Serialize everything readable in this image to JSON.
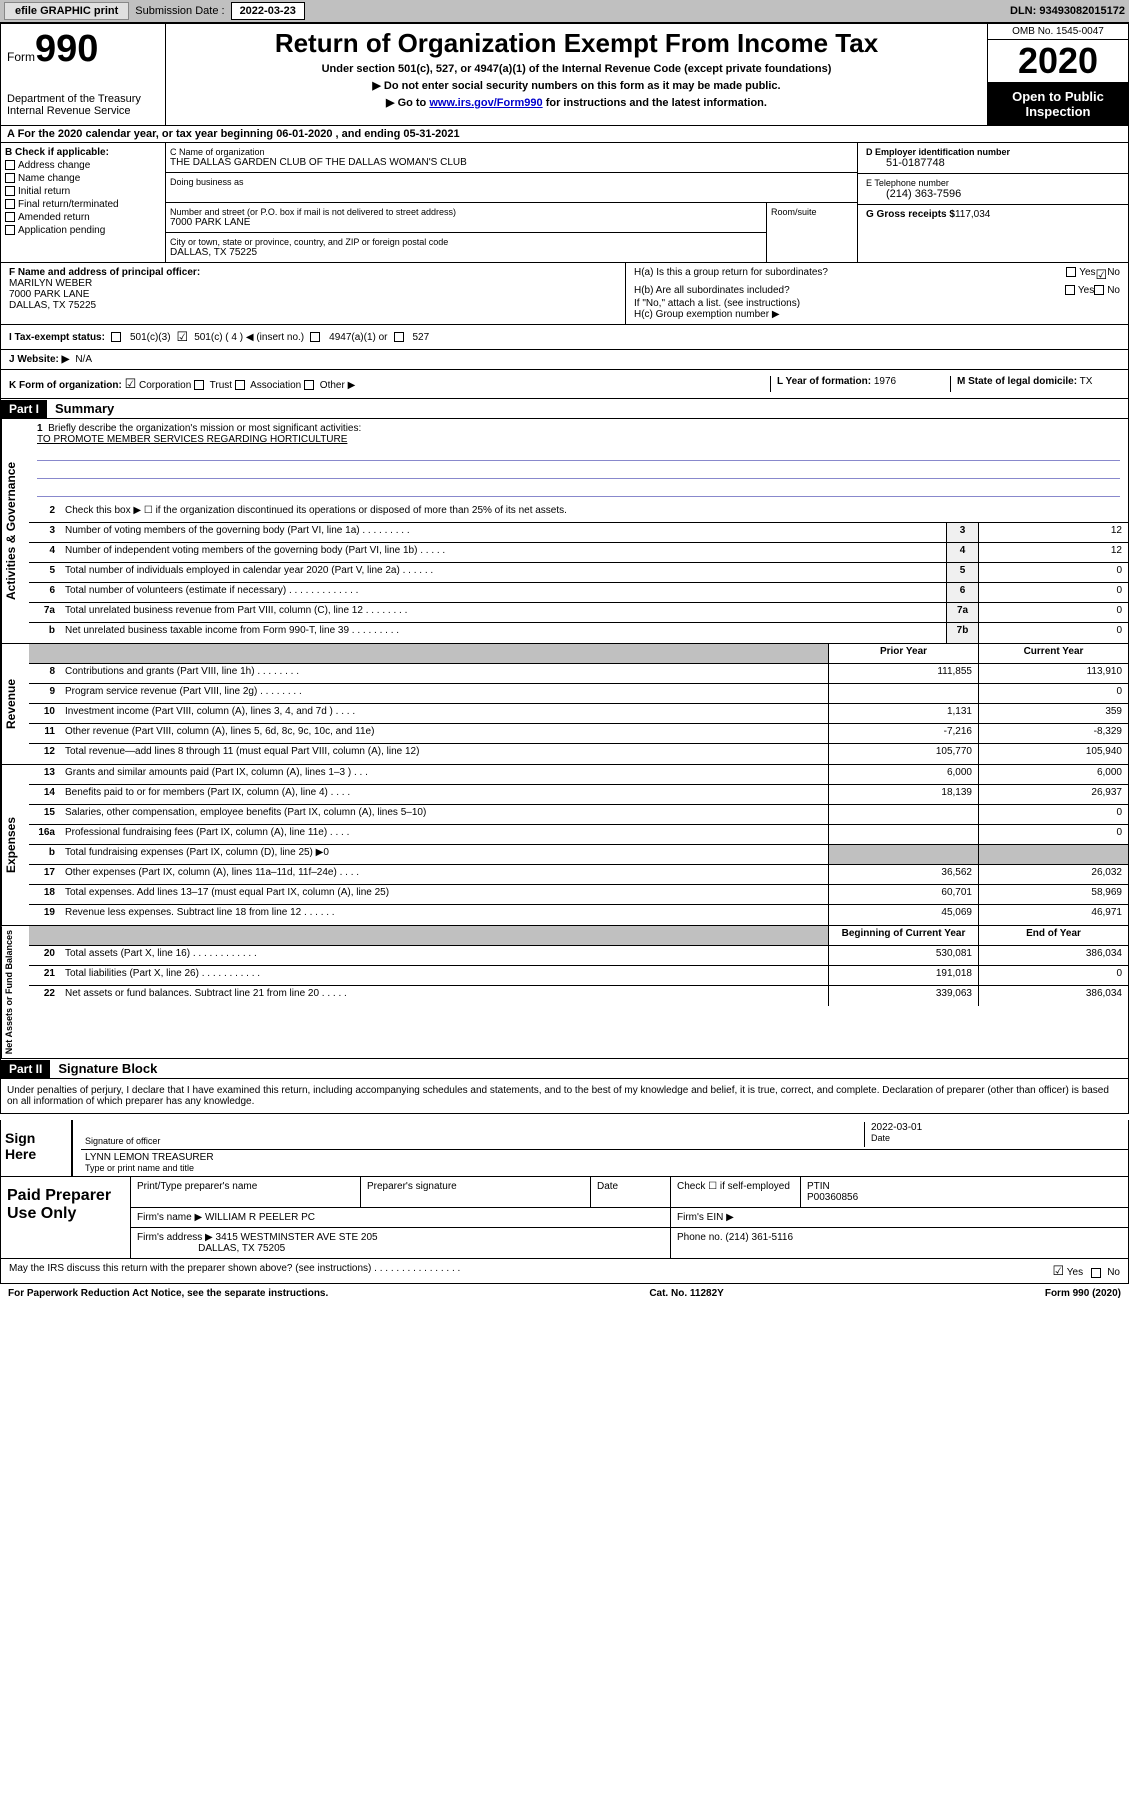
{
  "topbar": {
    "efile": "efile GRAPHIC print",
    "sub_label": "Submission Date :",
    "sub_date": "2022-03-23",
    "dln": "DLN: 93493082015172"
  },
  "header": {
    "form_word": "Form",
    "form_num": "990",
    "dept": "Department of the Treasury\nInternal Revenue Service",
    "title": "Return of Organization Exempt From Income Tax",
    "subtitle": "Under section 501(c), 527, or 4947(a)(1) of the Internal Revenue Code (except private foundations)",
    "sub1": "▶ Do not enter social security numbers on this form as it may be made public.",
    "sub2_a": "▶ Go to ",
    "sub2_link": "www.irs.gov/Form990",
    "sub2_b": " for instructions and the latest information.",
    "omb": "OMB No. 1545-0047",
    "year": "2020",
    "inspect": "Open to Public Inspection"
  },
  "rowA": "A For the 2020 calendar year, or tax year beginning 06-01-2020     , and ending 05-31-2021",
  "boxB": {
    "label": "B Check if applicable:",
    "items": [
      "Address change",
      "Name change",
      "Initial return",
      "Final return/terminated",
      "Amended return",
      "Application pending"
    ]
  },
  "boxC": {
    "name_lbl": "C Name of organization",
    "name": "THE DALLAS GARDEN CLUB OF THE DALLAS WOMAN'S CLUB",
    "dba_lbl": "Doing business as",
    "addr_lbl": "Number and street (or P.O. box if mail is not delivered to street address)",
    "addr": "7000 PARK LANE",
    "room_lbl": "Room/suite",
    "city_lbl": "City or town, state or province, country, and ZIP or foreign postal code",
    "city": "DALLAS, TX   75225"
  },
  "boxD": {
    "ein_lbl": "D Employer identification number",
    "ein": "51-0187748",
    "phone_lbl": "E Telephone number",
    "phone": "(214) 363-7596",
    "gross_lbl": "G Gross receipts $",
    "gross": "117,034"
  },
  "boxF": {
    "lbl": "F Name and address of principal officer:",
    "name": "MARILYN WEBER",
    "addr1": "7000 PARK LANE",
    "addr2": "DALLAS, TX   75225"
  },
  "boxH": {
    "ha": "H(a)  Is this a group return for subordinates?",
    "hb": "H(b)  Are all subordinates included?",
    "hb_note": "If \"No,\" attach a list. (see instructions)",
    "hc": "H(c)  Group exemption number ▶"
  },
  "rowI": {
    "lbl": "I    Tax-exempt status:",
    "c3": "501(c)(3)",
    "c4": "501(c) ( 4 ) ◀ (insert no.)",
    "a1": "4947(a)(1) or",
    "s527": "527"
  },
  "rowJ": {
    "lbl": "J    Website: ▶",
    "val": "N/A"
  },
  "rowK": {
    "lbl": "K Form of organization:",
    "opts": [
      "Corporation",
      "Trust",
      "Association",
      "Other ▶"
    ],
    "l_lbl": "L Year of formation:",
    "l_val": "1976",
    "m_lbl": "M State of legal domicile:",
    "m_val": "TX"
  },
  "part1": {
    "hdr": "Part I",
    "title": "Summary",
    "q1": "Briefly describe the organization's mission or most significant activities:",
    "mission": "TO PROMOTE MEMBER SERVICES REGARDING HORTICULTURE",
    "q2": "Check this box ▶ ☐  if the organization discontinued its operations or disposed of more than 25% of its net assets.",
    "rows_gov": [
      {
        "n": "3",
        "d": "Number of voting members of the governing body (Part VI, line 1a)  .  .  .  .  .  .  .  .  .",
        "b": "3",
        "v": "12"
      },
      {
        "n": "4",
        "d": "Number of independent voting members of the governing body (Part VI, line 1b)  .  .  .  .  .",
        "b": "4",
        "v": "12"
      },
      {
        "n": "5",
        "d": "Total number of individuals employed in calendar year 2020 (Part V, line 2a)  .  .  .  .  .  .",
        "b": "5",
        "v": "0"
      },
      {
        "n": "6",
        "d": "Total number of volunteers (estimate if necessary)  .  .  .  .  .  .  .  .  .  .  .  .  .",
        "b": "6",
        "v": "0"
      },
      {
        "n": "7a",
        "d": "Total unrelated business revenue from Part VIII, column (C), line 12  .  .  .  .  .  .  .  .",
        "b": "7a",
        "v": "0"
      },
      {
        "n": "b",
        "d": "Net unrelated business taxable income from Form 990-T, line 39  .  .  .  .  .  .  .  .  .",
        "b": "7b",
        "v": "0"
      }
    ],
    "rev_hdr_prior": "Prior Year",
    "rev_hdr_curr": "Current Year",
    "rows_rev": [
      {
        "n": "8",
        "d": "Contributions and grants (Part VIII, line 1h)  .  .  .  .  .  .  .  .",
        "p": "111,855",
        "c": "113,910"
      },
      {
        "n": "9",
        "d": "Program service revenue (Part VIII, line 2g)  .  .  .  .  .  .  .  .",
        "p": "",
        "c": "0"
      },
      {
        "n": "10",
        "d": "Investment income (Part VIII, column (A), lines 3, 4, and 7d )  .  .  .  .",
        "p": "1,131",
        "c": "359"
      },
      {
        "n": "11",
        "d": "Other revenue (Part VIII, column (A), lines 5, 6d, 8c, 9c, 10c, and 11e)",
        "p": "-7,216",
        "c": "-8,329"
      },
      {
        "n": "12",
        "d": "Total revenue—add lines 8 through 11 (must equal Part VIII, column (A), line 12)",
        "p": "105,770",
        "c": "105,940"
      }
    ],
    "rows_exp": [
      {
        "n": "13",
        "d": "Grants and similar amounts paid (Part IX, column (A), lines 1–3 )  .  .  .",
        "p": "6,000",
        "c": "6,000"
      },
      {
        "n": "14",
        "d": "Benefits paid to or for members (Part IX, column (A), line 4)  .  .  .  .",
        "p": "18,139",
        "c": "26,937"
      },
      {
        "n": "15",
        "d": "Salaries, other compensation, employee benefits (Part IX, column (A), lines 5–10)",
        "p": "",
        "c": "0"
      },
      {
        "n": "16a",
        "d": "Professional fundraising fees (Part IX, column (A), line 11e)  .  .  .  .",
        "p": "",
        "c": "0"
      },
      {
        "n": "b",
        "d": "Total fundraising expenses (Part IX, column (D), line 25) ▶0",
        "p": "",
        "c": "",
        "shade": true
      },
      {
        "n": "17",
        "d": "Other expenses (Part IX, column (A), lines 11a–11d, 11f–24e)  .  .  .  .",
        "p": "36,562",
        "c": "26,032"
      },
      {
        "n": "18",
        "d": "Total expenses. Add lines 13–17 (must equal Part IX, column (A), line 25)",
        "p": "60,701",
        "c": "58,969"
      },
      {
        "n": "19",
        "d": "Revenue less expenses. Subtract line 18 from line 12  .  .  .  .  .  .",
        "p": "45,069",
        "c": "46,971"
      }
    ],
    "net_hdr_beg": "Beginning of Current Year",
    "net_hdr_end": "End of Year",
    "rows_net": [
      {
        "n": "20",
        "d": "Total assets (Part X, line 16)  .  .  .  .  .  .  .  .  .  .  .  .",
        "p": "530,081",
        "c": "386,034"
      },
      {
        "n": "21",
        "d": "Total liabilities (Part X, line 26)  .  .  .  .  .  .  .  .  .  .  .",
        "p": "191,018",
        "c": "0"
      },
      {
        "n": "22",
        "d": "Net assets or fund balances. Subtract line 21 from line 20  .  .  .  .  .",
        "p": "339,063",
        "c": "386,034"
      }
    ],
    "side_gov": "Activities & Governance",
    "side_rev": "Revenue",
    "side_exp": "Expenses",
    "side_net": "Net Assets or Fund Balances"
  },
  "part2": {
    "hdr": "Part II",
    "title": "Signature Block",
    "decl": "Under penalties of perjury, I declare that I have examined this return, including accompanying schedules and statements, and to the best of my knowledge and belief, it is true, correct, and complete. Declaration of preparer (other than officer) is based on all information of which preparer has any knowledge.",
    "sign_here": "Sign Here",
    "sig_officer": "Signature of officer",
    "sig_date_lbl": "Date",
    "sig_date": "2022-03-01",
    "officer_name": "LYNN LEMON  TREASURER",
    "type_name": "Type or print name and title",
    "paid": "Paid Preparer Use Only",
    "prep_name_lbl": "Print/Type preparer's name",
    "prep_sig_lbl": "Preparer's signature",
    "date_lbl": "Date",
    "check_lbl": "Check ☐ if self-employed",
    "ptin_lbl": "PTIN",
    "ptin": "P00360856",
    "firm_name_lbl": "Firm's name      ▶",
    "firm_name": "WILLIAM R PEELER PC",
    "firm_ein_lbl": "Firm's EIN ▶",
    "firm_addr_lbl": "Firm's address ▶",
    "firm_addr1": "3415 WESTMINSTER AVE STE 205",
    "firm_addr2": "DALLAS, TX   75205",
    "firm_phone_lbl": "Phone no.",
    "firm_phone": "(214) 361-5116",
    "discuss": "May the IRS discuss this return with the preparer shown above? (see instructions)  .  .  .  .  .  .  .  .  .  .  .  .  .  .  .  .",
    "yes": "Yes",
    "no": "No"
  },
  "footer": {
    "pra": "For Paperwork Reduction Act Notice, see the separate instructions.",
    "cat": "Cat. No. 11282Y",
    "form": "Form 990 (2020)"
  }
}
